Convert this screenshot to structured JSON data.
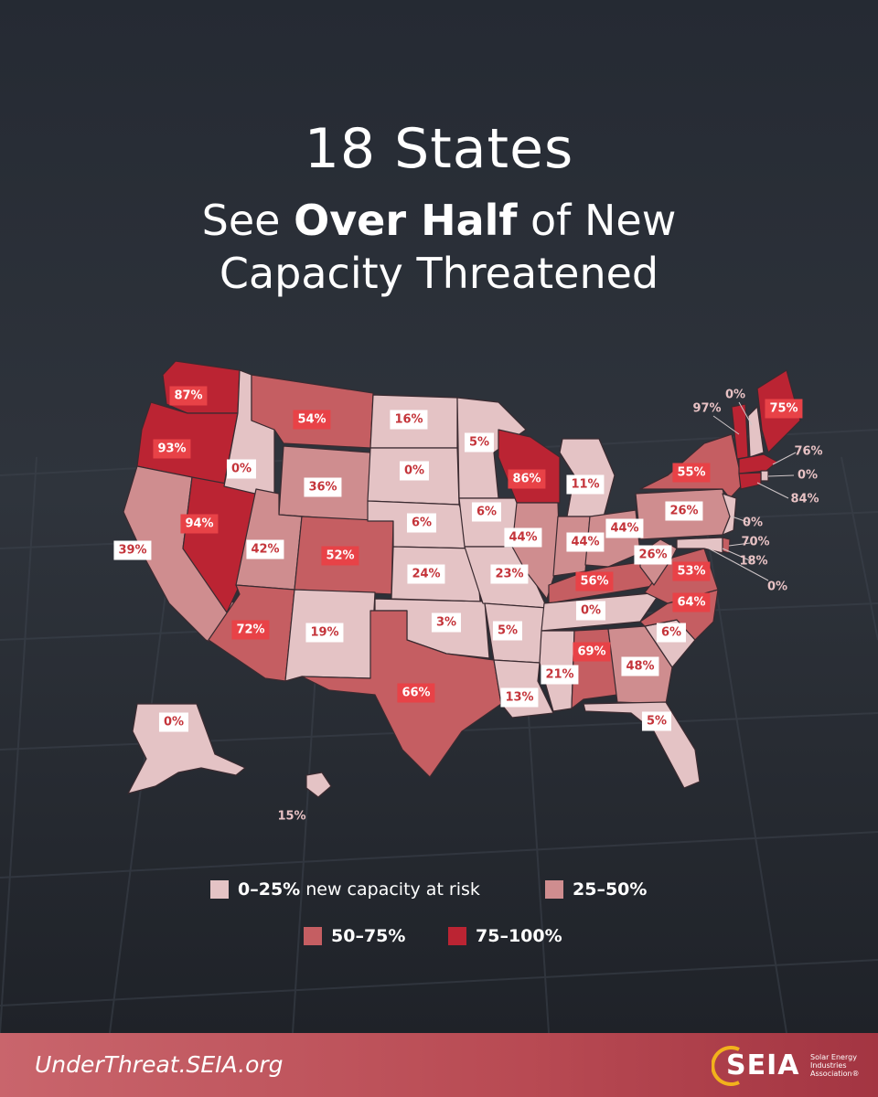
{
  "title_line1": "18 States",
  "title_line2_a": "See ",
  "title_line2_bold": "Over Half",
  "title_line2_b": " of New",
  "title_line3": "Capacity Threatened",
  "tier_colors": [
    "#e4c3c5",
    "#cf8d8f",
    "#c55e62",
    "#bb2433"
  ],
  "states": [
    {
      "id": "WA",
      "label": "87%",
      "tier": 3
    },
    {
      "id": "OR",
      "label": "93%",
      "tier": 3
    },
    {
      "id": "CA",
      "label": "39%",
      "tier": 1
    },
    {
      "id": "NV",
      "label": "94%",
      "tier": 3
    },
    {
      "id": "ID",
      "label": "0%",
      "tier": 0
    },
    {
      "id": "MT",
      "label": "54%",
      "tier": 2
    },
    {
      "id": "WY",
      "label": "36%",
      "tier": 1
    },
    {
      "id": "UT",
      "label": "42%",
      "tier": 1
    },
    {
      "id": "CO",
      "label": "52%",
      "tier": 2
    },
    {
      "id": "AZ",
      "label": "72%",
      "tier": 2
    },
    {
      "id": "NM",
      "label": "19%",
      "tier": 0
    },
    {
      "id": "ND",
      "label": "16%",
      "tier": 0
    },
    {
      "id": "SD",
      "label": "0%",
      "tier": 0
    },
    {
      "id": "NE",
      "label": "6%",
      "tier": 0
    },
    {
      "id": "KS",
      "label": "24%",
      "tier": 0
    },
    {
      "id": "OK",
      "label": "3%",
      "tier": 0
    },
    {
      "id": "TX",
      "label": "66%",
      "tier": 2
    },
    {
      "id": "MN",
      "label": "5%",
      "tier": 0
    },
    {
      "id": "IA",
      "label": "6%",
      "tier": 0
    },
    {
      "id": "MO",
      "label": "23%",
      "tier": 0
    },
    {
      "id": "AR",
      "label": "5%",
      "tier": 0
    },
    {
      "id": "LA",
      "label": "13%",
      "tier": 0
    },
    {
      "id": "WI",
      "label": "86%",
      "tier": 3
    },
    {
      "id": "IL",
      "label": "44%",
      "tier": 1
    },
    {
      "id": "MI",
      "label": "11%",
      "tier": 0
    },
    {
      "id": "IN",
      "label": "44%",
      "tier": 1
    },
    {
      "id": "OH",
      "label": "44%",
      "tier": 1
    },
    {
      "id": "KY",
      "label": "56%",
      "tier": 2
    },
    {
      "id": "TN",
      "label": "0%",
      "tier": 0
    },
    {
      "id": "MS",
      "label": "21%",
      "tier": 0
    },
    {
      "id": "AL",
      "label": "69%",
      "tier": 2
    },
    {
      "id": "GA",
      "label": "48%",
      "tier": 1
    },
    {
      "id": "FL",
      "label": "5%",
      "tier": 0
    },
    {
      "id": "SC",
      "label": "6%",
      "tier": 0
    },
    {
      "id": "NC",
      "label": "64%",
      "tier": 2
    },
    {
      "id": "VA",
      "label": "53%",
      "tier": 2
    },
    {
      "id": "WV",
      "label": "26%",
      "tier": 1
    },
    {
      "id": "PA",
      "label": "26%",
      "tier": 1
    },
    {
      "id": "NY",
      "label": "55%",
      "tier": 2
    },
    {
      "id": "VT",
      "label": "97%",
      "tier": 3
    },
    {
      "id": "NH",
      "label": "0%",
      "tier": 0
    },
    {
      "id": "ME",
      "label": "75%",
      "tier": 3
    },
    {
      "id": "MA",
      "label": "76%",
      "tier": 3
    },
    {
      "id": "RI",
      "label": "0%",
      "tier": 0
    },
    {
      "id": "CT",
      "label": "84%",
      "tier": 3
    },
    {
      "id": "NJ",
      "label": "0%",
      "tier": 0
    },
    {
      "id": "DE",
      "label": "70%",
      "tier": 2
    },
    {
      "id": "MD",
      "label": "18%",
      "tier": 0
    },
    {
      "id": "DC",
      "label": "0%",
      "tier": 0
    },
    {
      "id": "AK",
      "label": "0%",
      "tier": 0
    },
    {
      "id": "HI",
      "label": "15%",
      "tier": 0
    }
  ],
  "legend": [
    {
      "bold": "0–25%",
      "text": " new capacity at risk",
      "tier": 0
    },
    {
      "bold": "25–50%",
      "text": "",
      "tier": 1
    },
    {
      "bold": "50–75%",
      "text": "",
      "tier": 2
    },
    {
      "bold": "75–100%",
      "text": "",
      "tier": 3
    }
  ],
  "footer_url": "UnderThreat.SEIA.org",
  "logo_word": "SEIA",
  "logo_sub": "Solar Energy Industries Association®"
}
